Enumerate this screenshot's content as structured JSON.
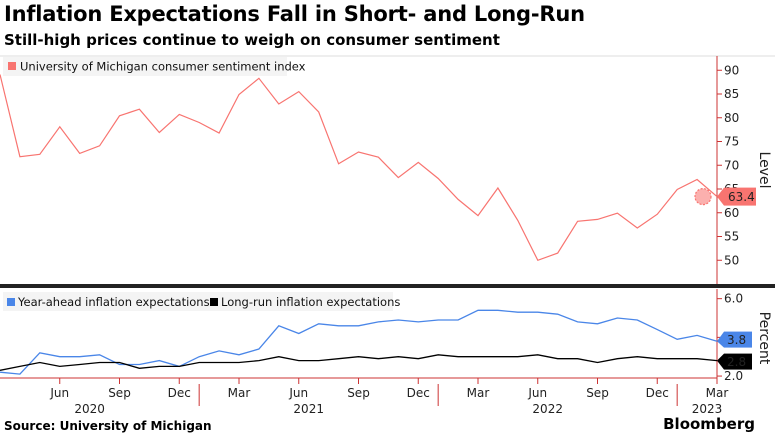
{
  "title": "Inflation Expectations Fall in Short- and Long-Run",
  "subtitle": "Still-high prices continue to weigh on consumer sentiment",
  "source": "Source: University of Michigan",
  "brand": "Bloomberg",
  "chart_data": [
    {
      "type": "line",
      "series": [
        {
          "name": "University of Michigan consumer sentiment index",
          "color": "#f87470",
          "values": [
            89.1,
            71.8,
            72.3,
            78.1,
            72.5,
            74.1,
            80.4,
            81.8,
            76.9,
            80.7,
            79.0,
            76.8,
            84.9,
            88.3,
            82.9,
            85.5,
            81.2,
            70.3,
            72.8,
            71.7,
            67.4,
            70.6,
            67.2,
            62.8,
            59.4,
            65.2,
            58.4,
            50.0,
            51.5,
            58.2,
            58.6,
            59.9,
            56.8,
            59.7,
            64.9,
            67.0,
            63.4
          ]
        }
      ],
      "x": [
        "2020-03",
        "2020-04",
        "2020-05",
        "2020-06",
        "2020-07",
        "2020-08",
        "2020-09",
        "2020-10",
        "2020-11",
        "2020-12",
        "2021-01",
        "2021-02",
        "2021-03",
        "2021-04",
        "2021-05",
        "2021-06",
        "2021-07",
        "2021-08",
        "2021-09",
        "2021-10",
        "2021-11",
        "2021-12",
        "2022-01",
        "2022-02",
        "2022-03",
        "2022-04",
        "2022-05",
        "2022-06",
        "2022-07",
        "2022-08",
        "2022-09",
        "2022-10",
        "2022-11",
        "2022-12",
        "2023-01",
        "2023-02",
        "2023-03"
      ],
      "ylabel": "Level",
      "ylim": [
        45,
        93
      ],
      "yticks": [
        "90",
        "85",
        "80",
        "75",
        "70",
        "65",
        "60",
        "55",
        "50"
      ],
      "last_value_label": "63.4",
      "legend_position": "top-left"
    },
    {
      "type": "line",
      "series": [
        {
          "name": "Year-ahead inflation expectations",
          "color": "#4a86e8",
          "values": [
            2.2,
            2.1,
            3.2,
            3.0,
            3.0,
            3.1,
            2.6,
            2.6,
            2.8,
            2.5,
            3.0,
            3.3,
            3.1,
            3.4,
            4.6,
            4.2,
            4.7,
            4.6,
            4.6,
            4.8,
            4.9,
            4.8,
            4.9,
            4.9,
            5.4,
            5.4,
            5.3,
            5.3,
            5.2,
            4.8,
            4.7,
            5.0,
            4.9,
            4.4,
            3.9,
            4.1,
            3.8
          ]
        },
        {
          "name": "Long-run inflation expectations",
          "color": "#000000",
          "values": [
            2.3,
            2.5,
            2.7,
            2.5,
            2.6,
            2.7,
            2.7,
            2.4,
            2.5,
            2.5,
            2.7,
            2.7,
            2.7,
            2.8,
            3.0,
            2.8,
            2.8,
            2.9,
            3.0,
            2.9,
            3.0,
            2.9,
            3.1,
            3.0,
            3.0,
            3.0,
            3.0,
            3.1,
            2.9,
            2.9,
            2.7,
            2.9,
            3.0,
            2.9,
            2.9,
            2.9,
            2.8
          ]
        }
      ],
      "x": [
        "2020-03",
        "2020-04",
        "2020-05",
        "2020-06",
        "2020-07",
        "2020-08",
        "2020-09",
        "2020-10",
        "2020-11",
        "2020-12",
        "2021-01",
        "2021-02",
        "2021-03",
        "2021-04",
        "2021-05",
        "2021-06",
        "2021-07",
        "2021-08",
        "2021-09",
        "2021-10",
        "2021-11",
        "2021-12",
        "2022-01",
        "2022-02",
        "2022-03",
        "2022-04",
        "2022-05",
        "2022-06",
        "2022-07",
        "2022-08",
        "2022-09",
        "2022-10",
        "2022-11",
        "2022-12",
        "2023-01",
        "2023-02",
        "2023-03"
      ],
      "ylabel": "Percent",
      "ylim": [
        1.9,
        6.5
      ],
      "yticks": [
        "6.0",
        "4.0",
        "2.0"
      ],
      "last_value_labels": [
        "3.8",
        "2.8"
      ],
      "xticks": [
        "Jun",
        "Sep",
        "Dec",
        "Mar",
        "Jun",
        "Sep",
        "Dec",
        "Mar",
        "Jun",
        "Sep",
        "Dec",
        "Mar"
      ],
      "year_labels": [
        "2020",
        "2021",
        "2022",
        "2023"
      ],
      "legend_position": "top-left"
    }
  ]
}
